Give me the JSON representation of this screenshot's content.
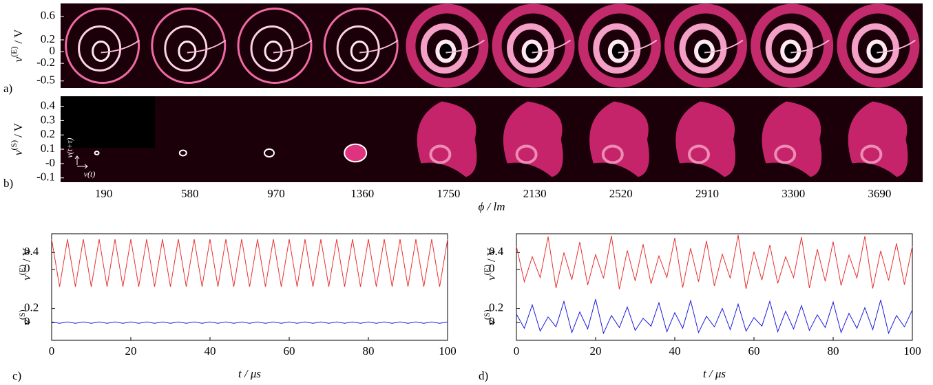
{
  "chart_data": [
    {
      "type": "image-strip",
      "label": "a)",
      "ylabel": {
        "symbol": "v",
        "superscript": "(E)",
        "unit": "/ V"
      },
      "ylim": [
        -0.62,
        0.82
      ],
      "yticks": [
        0.6,
        0.2,
        0,
        -0.2,
        -0.5
      ]
    },
    {
      "type": "image-strip",
      "label": "b)",
      "ylabel": {
        "symbol": "v",
        "superscript": "(S)",
        "unit": "/ V"
      },
      "ylim": [
        -0.13,
        0.47
      ],
      "yticks": [
        0.4,
        0.3,
        0.2,
        0.1,
        {
          "value": 0,
          "label": "-0"
        },
        -0.1
      ],
      "inset_labels": {
        "y": "v(t+τ)",
        "x": "v(t)"
      },
      "categories": [
        "190",
        "580",
        "970",
        "1360",
        "1750",
        "2130",
        "2520",
        "2910",
        "3300",
        "3690"
      ],
      "xlabel": "ϕ / lm"
    },
    {
      "type": "line",
      "label": "c)",
      "xlabel": "t / μs",
      "xlim": [
        0,
        100
      ],
      "xticks": [
        0,
        20,
        40,
        60,
        80,
        100
      ],
      "x": [
        0,
        2,
        4,
        6,
        8,
        10,
        12,
        14,
        16,
        18,
        20,
        22,
        24,
        26,
        28,
        30,
        32,
        34,
        36,
        38,
        40,
        42,
        44,
        46,
        48,
        50,
        52,
        54,
        56,
        58,
        60,
        62,
        64,
        66,
        68,
        70,
        72,
        74,
        76,
        78,
        80,
        82,
        84,
        86,
        88,
        90,
        92,
        94,
        96,
        98,
        100
      ],
      "panels": [
        {
          "ylabel": {
            "symbol": "v",
            "superscript": "(E)",
            "unit": "/ V"
          },
          "ylim": [
            -0.6,
            0.85
          ],
          "yticks": [
            0.4,
            0
          ],
          "series": [
            {
              "color": "#e8302f",
              "values": [
                0.72,
                -0.42,
                0.72,
                -0.42,
                0.72,
                -0.42,
                0.72,
                -0.42,
                0.72,
                -0.42,
                0.72,
                -0.42,
                0.72,
                -0.42,
                0.72,
                -0.42,
                0.72,
                -0.42,
                0.72,
                -0.42,
                0.72,
                -0.42,
                0.72,
                -0.42,
                0.72,
                -0.42,
                0.72,
                -0.42,
                0.72,
                -0.42,
                0.72,
                -0.42,
                0.72,
                -0.42,
                0.72,
                -0.42,
                0.72,
                -0.42,
                0.72,
                -0.42,
                0.72,
                -0.42,
                0.72,
                -0.42,
                0.72,
                -0.42,
                0.72,
                -0.42,
                0.72,
                -0.42,
                0.72
              ]
            }
          ]
        },
        {
          "ylabel": {
            "symbol": "v",
            "superscript": "(S)"
          },
          "ylim": [
            -0.25,
            0.4
          ],
          "yticks": [
            0.2,
            0
          ],
          "series": [
            {
              "color": "#1a1adc",
              "values": [
                0.01,
                -0.01,
                0.01,
                -0.01,
                0.01,
                -0.01,
                0.01,
                -0.01,
                0.01,
                -0.01,
                0.01,
                -0.01,
                0.01,
                -0.01,
                0.01,
                -0.01,
                0.01,
                -0.01,
                0.01,
                -0.01,
                0.01,
                -0.01,
                0.01,
                -0.01,
                0.01,
                -0.01,
                0.01,
                -0.01,
                0.01,
                -0.01,
                0.01,
                -0.01,
                0.01,
                -0.01,
                0.01,
                -0.01,
                0.01,
                -0.01,
                0.01,
                -0.01,
                0.01,
                -0.01,
                0.01,
                -0.01,
                0.01,
                -0.01,
                0.01,
                -0.01,
                0.01,
                -0.01,
                0.01
              ]
            }
          ]
        }
      ]
    },
    {
      "type": "line",
      "label": "d)",
      "xlabel": "t / μs",
      "xlim": [
        0,
        100
      ],
      "xticks": [
        0,
        20,
        40,
        60,
        80,
        100
      ],
      "x": [
        0,
        2,
        4,
        6,
        8,
        10,
        12,
        14,
        16,
        18,
        20,
        22,
        24,
        26,
        28,
        30,
        32,
        34,
        36,
        38,
        40,
        42,
        44,
        46,
        48,
        50,
        52,
        54,
        56,
        58,
        60,
        62,
        64,
        66,
        68,
        70,
        72,
        74,
        76,
        78,
        80,
        82,
        84,
        86,
        88,
        90,
        92,
        94,
        96,
        98,
        100
      ],
      "panels": [
        {
          "ylabel": {
            "symbol": "v",
            "superscript": "(E)",
            "unit": "/ V"
          },
          "ylim": [
            -0.6,
            0.85
          ],
          "yticks": [
            0.4,
            0
          ],
          "series": [
            {
              "color": "#e8302f",
              "values": [
                0.55,
                -0.3,
                0.3,
                -0.2,
                0.78,
                -0.45,
                0.4,
                -0.25,
                0.65,
                -0.38,
                0.35,
                -0.22,
                0.8,
                -0.48,
                0.45,
                -0.28,
                0.6,
                -0.35,
                0.32,
                -0.2,
                0.75,
                -0.44,
                0.5,
                -0.3,
                0.68,
                -0.4,
                0.36,
                -0.22,
                0.82,
                -0.47,
                0.42,
                -0.26,
                0.58,
                -0.34,
                0.3,
                -0.2,
                0.77,
                -0.45,
                0.48,
                -0.29,
                0.66,
                -0.39,
                0.34,
                -0.21,
                0.79,
                -0.46,
                0.44,
                -0.27,
                0.62,
                -0.37,
                0.55
              ]
            }
          ]
        },
        {
          "ylabel": {
            "symbol": "v",
            "superscript": "(S)"
          },
          "ylim": [
            -0.25,
            0.4
          ],
          "yticks": [
            0.2,
            0
          ],
          "series": [
            {
              "color": "#1a1adc",
              "values": [
                0.12,
                -0.08,
                0.25,
                -0.12,
                0.08,
                -0.06,
                0.3,
                -0.14,
                0.15,
                -0.09,
                0.33,
                -0.15,
                0.1,
                -0.07,
                0.22,
                -0.11,
                0.06,
                -0.05,
                0.28,
                -0.13,
                0.14,
                -0.08,
                0.31,
                -0.14,
                0.09,
                -0.06,
                0.2,
                -0.1,
                0.26,
                -0.12,
                0.07,
                -0.05,
                0.3,
                -0.13,
                0.16,
                -0.09,
                0.24,
                -0.11,
                0.11,
                -0.07,
                0.29,
                -0.14,
                0.13,
                -0.08,
                0.21,
                -0.1,
                0.32,
                -0.15,
                0.1,
                -0.06,
                0.18
              ]
            }
          ]
        }
      ]
    }
  ]
}
